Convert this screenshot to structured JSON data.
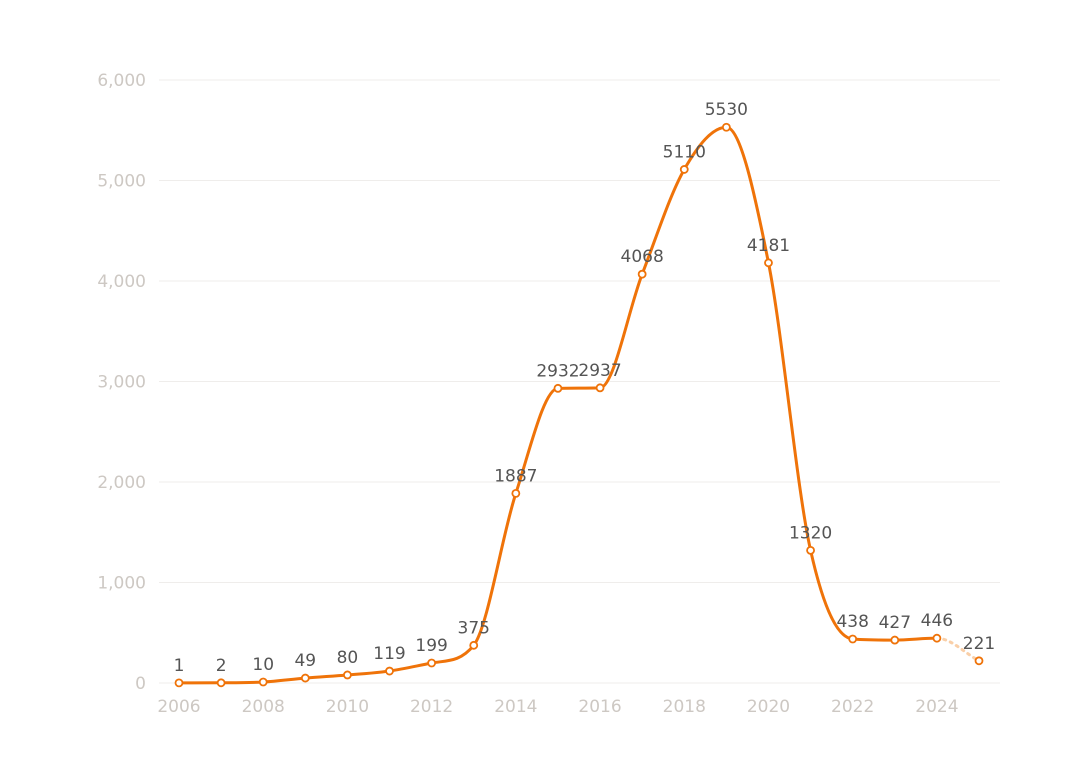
{
  "chart_data": {
    "type": "line",
    "title": "",
    "xlabel": "",
    "ylabel": "",
    "x": [
      2006,
      2007,
      2008,
      2009,
      2010,
      2011,
      2012,
      2013,
      2014,
      2015,
      2016,
      2017,
      2018,
      2019,
      2020,
      2021,
      2022,
      2023,
      2024,
      2025
    ],
    "series": [
      {
        "name": "",
        "values": [
          1,
          2,
          10,
          49,
          80,
          119,
          199,
          375,
          1887,
          2932,
          2937,
          4068,
          5110,
          5530,
          4181,
          1320,
          438,
          427,
          446,
          221
        ],
        "projected_from_index": 18
      }
    ],
    "xticks": [
      "2006",
      "2008",
      "2010",
      "2012",
      "2014",
      "2016",
      "2018",
      "2020",
      "2022",
      "2024"
    ],
    "yticks": [
      "0",
      "1,000",
      "2,000",
      "3,000",
      "4,000",
      "5,000",
      "6,000"
    ],
    "ylim": [
      0,
      6000
    ],
    "xlim": [
      2006,
      2025
    ],
    "grid": true,
    "legend": "none",
    "colors": {
      "line": "#ef7309",
      "projected": "#f9cfa8",
      "grid": "#efedeb",
      "tick": "#cdc8c3",
      "label": "#555555"
    }
  }
}
